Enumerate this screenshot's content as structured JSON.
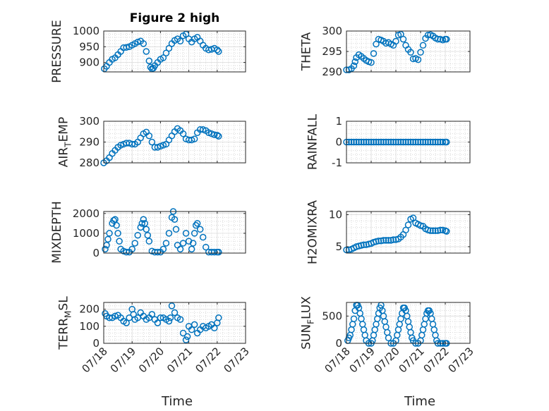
{
  "figure_title": "Figure 2 high",
  "xlabel": "Time",
  "marker_color": "#0072BD",
  "chart_data": [
    {
      "id": "pressure",
      "type": "scatter",
      "column": 0,
      "row": 0,
      "title": "Figure 2 high",
      "ylabel": "PRESSURE",
      "ylabel_sub": "",
      "ylim": [
        870,
        1000
      ],
      "yticks": [
        900,
        950,
        1000
      ],
      "xlim": [
        0,
        5
      ],
      "xticks": [
        0,
        1,
        2,
        3,
        4,
        5
      ],
      "xticklabels": [
        "07/18",
        "07/19",
        "07/20",
        "07/21",
        "07/22",
        "07/23"
      ],
      "show_xticklabels": false,
      "x": [
        0.02,
        0.1,
        0.2,
        0.3,
        0.4,
        0.5,
        0.6,
        0.7,
        0.8,
        0.9,
        1.0,
        1.1,
        1.2,
        1.3,
        1.4,
        1.5,
        1.6,
        1.65,
        1.7,
        1.75,
        1.8,
        1.9,
        2.0,
        2.1,
        2.2,
        2.3,
        2.4,
        2.5,
        2.6,
        2.7,
        2.8,
        2.9,
        3.0,
        3.1,
        3.2,
        3.3,
        3.4,
        3.5,
        3.6,
        3.7,
        3.8,
        3.9,
        4.0,
        4.05
      ],
      "y": [
        880,
        888,
        900,
        910,
        915,
        925,
        935,
        947,
        948,
        950,
        955,
        960,
        965,
        968,
        960,
        935,
        905,
        885,
        880,
        882,
        890,
        900,
        910,
        915,
        930,
        945,
        960,
        970,
        975,
        968,
        985,
        990,
        975,
        965,
        975,
        980,
        968,
        955,
        945,
        940,
        942,
        945,
        940,
        935
      ]
    },
    {
      "id": "theta",
      "type": "scatter",
      "column": 1,
      "row": 0,
      "title": "",
      "ylabel": "THETA",
      "ylabel_sub": "",
      "ylim": [
        290,
        300
      ],
      "yticks": [
        290,
        295,
        300
      ],
      "xlim": [
        0,
        5
      ],
      "xticks": [
        0,
        1,
        2,
        3,
        4,
        5
      ],
      "xticklabels": [
        "07/18",
        "07/19",
        "07/20",
        "07/21",
        "07/22",
        "07/23"
      ],
      "show_xticklabels": false,
      "x": [
        0.0,
        0.1,
        0.2,
        0.3,
        0.35,
        0.4,
        0.5,
        0.6,
        0.7,
        0.8,
        0.9,
        1.0,
        1.1,
        1.2,
        1.3,
        1.4,
        1.5,
        1.6,
        1.7,
        1.8,
        1.9,
        2.0,
        2.1,
        2.2,
        2.3,
        2.4,
        2.5,
        2.6,
        2.7,
        2.8,
        2.9,
        3.0,
        3.1,
        3.2,
        3.3,
        3.4,
        3.5,
        3.6,
        3.7,
        3.8,
        3.9,
        4.0,
        4.05
      ],
      "y": [
        290.5,
        290.5,
        290.8,
        291.5,
        292.5,
        293.5,
        294.2,
        293.8,
        293.3,
        292.8,
        292.5,
        292.3,
        294.5,
        296.8,
        298.0,
        297.8,
        297.5,
        297.0,
        297.2,
        296.8,
        296.5,
        297.5,
        299.0,
        299.2,
        298.0,
        296.5,
        295.5,
        294.8,
        293.2,
        293.3,
        293.0,
        294.8,
        296.5,
        298.2,
        299.0,
        299.1,
        298.8,
        298.3,
        298.0,
        298.0,
        297.8,
        298.0,
        298.0
      ]
    },
    {
      "id": "air_temp",
      "type": "scatter",
      "column": 0,
      "row": 1,
      "title": "",
      "ylabel": "AIR",
      "ylabel_sub": "T",
      "ylabel_tail": "EMP",
      "ylim": [
        280,
        300
      ],
      "yticks": [
        280,
        290,
        300
      ],
      "xlim": [
        0,
        5
      ],
      "xticks": [
        0,
        1,
        2,
        3,
        4,
        5
      ],
      "xticklabels": [
        "07/18",
        "07/19",
        "07/20",
        "07/21",
        "07/22",
        "07/23"
      ],
      "show_xticklabels": false,
      "x": [
        0.0,
        0.1,
        0.2,
        0.3,
        0.4,
        0.5,
        0.6,
        0.7,
        0.8,
        0.9,
        1.0,
        1.1,
        1.2,
        1.3,
        1.4,
        1.5,
        1.6,
        1.7,
        1.8,
        1.9,
        2.0,
        2.1,
        2.2,
        2.3,
        2.4,
        2.5,
        2.6,
        2.7,
        2.8,
        2.9,
        3.0,
        3.1,
        3.2,
        3.3,
        3.4,
        3.5,
        3.6,
        3.7,
        3.8,
        3.9,
        4.0,
        4.05
      ],
      "y": [
        280,
        281,
        282.5,
        284.5,
        286,
        287.5,
        288.5,
        289,
        289.5,
        289.5,
        289,
        289,
        290,
        292,
        294,
        294.8,
        293,
        290,
        287.5,
        287.5,
        288,
        288.5,
        289,
        291,
        293,
        295,
        296.5,
        295.5,
        294,
        291.5,
        291,
        291,
        291.5,
        294.5,
        296,
        296,
        295.5,
        294.5,
        294,
        293.5,
        293.3,
        292.8
      ]
    },
    {
      "id": "rainfall",
      "type": "scatter",
      "column": 1,
      "row": 1,
      "title": "",
      "ylabel": "RAINFALL",
      "ylabel_sub": "",
      "ylim": [
        -1,
        1
      ],
      "yticks": [
        -1,
        0,
        1
      ],
      "xlim": [
        0,
        5
      ],
      "xticks": [
        0,
        1,
        2,
        3,
        4,
        5
      ],
      "xticklabels": [
        "07/18",
        "07/19",
        "07/20",
        "07/21",
        "07/22",
        "07/23"
      ],
      "show_xticklabels": false,
      "x": [
        0.0,
        0.1,
        0.2,
        0.3,
        0.4,
        0.5,
        0.6,
        0.7,
        0.8,
        0.9,
        1.0,
        1.1,
        1.2,
        1.3,
        1.4,
        1.5,
        1.6,
        1.7,
        1.8,
        1.9,
        2.0,
        2.1,
        2.2,
        2.3,
        2.4,
        2.5,
        2.6,
        2.7,
        2.8,
        2.9,
        3.0,
        3.1,
        3.2,
        3.3,
        3.4,
        3.5,
        3.6,
        3.7,
        3.8,
        3.9,
        4.0,
        4.05
      ],
      "y": [
        0,
        0,
        0,
        0,
        0,
        0,
        0,
        0,
        0,
        0,
        0,
        0,
        0,
        0,
        0,
        0,
        0,
        0,
        0,
        0,
        0,
        0,
        0,
        0,
        0,
        0,
        0,
        0,
        0,
        0,
        0,
        0,
        0,
        0,
        0,
        0,
        0,
        0,
        0,
        0,
        0,
        0
      ]
    },
    {
      "id": "mixdepth",
      "type": "scatter",
      "column": 0,
      "row": 2,
      "title": "",
      "ylabel": "MIXDEPTH",
      "ylabel_sub": "",
      "ylim": [
        0,
        2100
      ],
      "yticks": [
        0,
        1000,
        2000
      ],
      "xlim": [
        0,
        5
      ],
      "xticks": [
        0,
        1,
        2,
        3,
        4,
        5
      ],
      "xticklabels": [
        "07/18",
        "07/19",
        "07/20",
        "07/21",
        "07/22",
        "07/23"
      ],
      "show_xticklabels": false,
      "x": [
        0.05,
        0.1,
        0.15,
        0.2,
        0.3,
        0.35,
        0.4,
        0.45,
        0.5,
        0.55,
        0.6,
        0.7,
        0.8,
        0.9,
        1.0,
        1.1,
        1.2,
        1.3,
        1.35,
        1.4,
        1.45,
        1.5,
        1.55,
        1.6,
        1.7,
        1.8,
        1.9,
        2.0,
        2.1,
        2.2,
        2.3,
        2.4,
        2.45,
        2.5,
        2.55,
        2.6,
        2.7,
        2.8,
        2.9,
        3.0,
        3.1,
        3.15,
        3.2,
        3.25,
        3.3,
        3.4,
        3.5,
        3.6,
        3.7,
        3.8,
        3.9,
        4.0,
        4.05
      ],
      "y": [
        200,
        400,
        700,
        1000,
        1500,
        1650,
        1700,
        1400,
        1000,
        600,
        200,
        100,
        50,
        50,
        200,
        500,
        900,
        1300,
        1500,
        1700,
        1500,
        1200,
        900,
        600,
        100,
        50,
        50,
        50,
        200,
        500,
        1000,
        1800,
        2100,
        1700,
        1200,
        400,
        200,
        500,
        1000,
        600,
        200,
        500,
        1000,
        1400,
        1500,
        1200,
        800,
        300,
        50,
        50,
        50,
        50,
        50
      ]
    },
    {
      "id": "h2omixra",
      "type": "scatter",
      "column": 1,
      "row": 2,
      "title": "",
      "ylabel": "H2OMIXRA",
      "ylabel_sub": "",
      "ylim": [
        4,
        10.5
      ],
      "yticks": [
        5,
        10
      ],
      "xlim": [
        0,
        5
      ],
      "xticks": [
        0,
        1,
        2,
        3,
        4,
        5
      ],
      "xticklabels": [
        "07/18",
        "07/19",
        "07/20",
        "07/21",
        "07/22",
        "07/23"
      ],
      "show_xticklabels": false,
      "x": [
        0.0,
        0.1,
        0.2,
        0.3,
        0.4,
        0.5,
        0.6,
        0.7,
        0.8,
        0.9,
        1.0,
        1.1,
        1.2,
        1.3,
        1.4,
        1.5,
        1.6,
        1.7,
        1.8,
        1.9,
        2.0,
        2.1,
        2.2,
        2.3,
        2.4,
        2.5,
        2.6,
        2.7,
        2.8,
        2.9,
        3.0,
        3.1,
        3.2,
        3.3,
        3.4,
        3.5,
        3.6,
        3.7,
        3.8,
        3.9,
        4.0,
        4.05
      ],
      "y": [
        4.5,
        4.5,
        4.6,
        4.8,
        5.0,
        5.1,
        5.2,
        5.3,
        5.3,
        5.4,
        5.5,
        5.7,
        5.8,
        5.9,
        5.9,
        6.0,
        6.0,
        6.0,
        6.0,
        6.1,
        6.1,
        6.2,
        6.5,
        6.9,
        7.6,
        8.4,
        9.3,
        9.5,
        8.7,
        8.5,
        8.3,
        8.2,
        7.8,
        7.6,
        7.5,
        7.5,
        7.5,
        7.5,
        7.6,
        7.6,
        7.5,
        7.4
      ]
    },
    {
      "id": "terr_msl",
      "type": "scatter",
      "column": 0,
      "row": 3,
      "title": "",
      "ylabel": "TERR",
      "ylabel_sub": "M",
      "ylabel_tail": "SL",
      "ylim": [
        0,
        240
      ],
      "yticks": [
        0,
        100,
        200
      ],
      "xlim": [
        0,
        5
      ],
      "xticks": [
        0,
        1,
        2,
        3,
        4,
        5
      ],
      "xticklabels": [
        "07/18",
        "07/19",
        "07/20",
        "07/21",
        "07/22",
        "07/23"
      ],
      "show_xticklabels": true,
      "x": [
        0.05,
        0.1,
        0.2,
        0.3,
        0.4,
        0.5,
        0.6,
        0.7,
        0.8,
        0.9,
        1.0,
        1.05,
        1.1,
        1.2,
        1.3,
        1.4,
        1.5,
        1.6,
        1.7,
        1.8,
        1.9,
        2.0,
        2.1,
        2.2,
        2.3,
        2.35,
        2.4,
        2.5,
        2.6,
        2.7,
        2.8,
        2.9,
        2.95,
        3.0,
        3.1,
        3.2,
        3.3,
        3.4,
        3.5,
        3.6,
        3.7,
        3.8,
        3.9,
        4.0,
        4.05
      ],
      "y": [
        175,
        160,
        150,
        150,
        160,
        165,
        150,
        130,
        120,
        150,
        200,
        170,
        140,
        150,
        180,
        160,
        140,
        150,
        170,
        140,
        120,
        150,
        150,
        140,
        130,
        150,
        220,
        180,
        150,
        140,
        60,
        20,
        40,
        100,
        80,
        110,
        60,
        80,
        100,
        90,
        100,
        110,
        90,
        120,
        150
      ]
    },
    {
      "id": "sun_flux",
      "type": "scatter",
      "column": 1,
      "row": 3,
      "title": "",
      "ylabel": "SUN",
      "ylabel_sub": "F",
      "ylabel_tail": "LUX",
      "ylim": [
        0,
        750
      ],
      "yticks": [
        0,
        500
      ],
      "xlim": [
        0,
        5
      ],
      "xticks": [
        0,
        1,
        2,
        3,
        4,
        5
      ],
      "xticklabels": [
        "07/18",
        "07/19",
        "07/20",
        "07/21",
        "07/22",
        "07/23"
      ],
      "show_xticklabels": true,
      "x": [
        0.05,
        0.1,
        0.15,
        0.2,
        0.25,
        0.3,
        0.35,
        0.4,
        0.45,
        0.5,
        0.55,
        0.6,
        0.65,
        0.7,
        0.75,
        0.8,
        0.9,
        1.0,
        1.05,
        1.1,
        1.15,
        1.2,
        1.25,
        1.3,
        1.35,
        1.4,
        1.45,
        1.5,
        1.55,
        1.6,
        1.65,
        1.7,
        1.8,
        1.9,
        2.0,
        2.05,
        2.1,
        2.15,
        2.2,
        2.25,
        2.3,
        2.35,
        2.4,
        2.45,
        2.5,
        2.55,
        2.6,
        2.65,
        2.7,
        2.8,
        2.9,
        3.0,
        3.05,
        3.1,
        3.15,
        3.2,
        3.25,
        3.3,
        3.35,
        3.4,
        3.45,
        3.5,
        3.55,
        3.6,
        3.65,
        3.7,
        3.8,
        3.9,
        4.0,
        4.05
      ],
      "y": [
        50,
        100,
        150,
        250,
        350,
        450,
        600,
        700,
        700,
        650,
        550,
        450,
        350,
        250,
        150,
        50,
        0,
        0,
        50,
        150,
        250,
        350,
        450,
        550,
        650,
        700,
        600,
        500,
        400,
        300,
        200,
        100,
        0,
        0,
        50,
        150,
        250,
        350,
        450,
        550,
        650,
        650,
        600,
        500,
        400,
        300,
        200,
        100,
        50,
        0,
        0,
        50,
        150,
        250,
        350,
        450,
        550,
        600,
        600,
        550,
        450,
        350,
        250,
        150,
        50,
        0,
        0,
        0,
        0,
        0
      ]
    }
  ]
}
